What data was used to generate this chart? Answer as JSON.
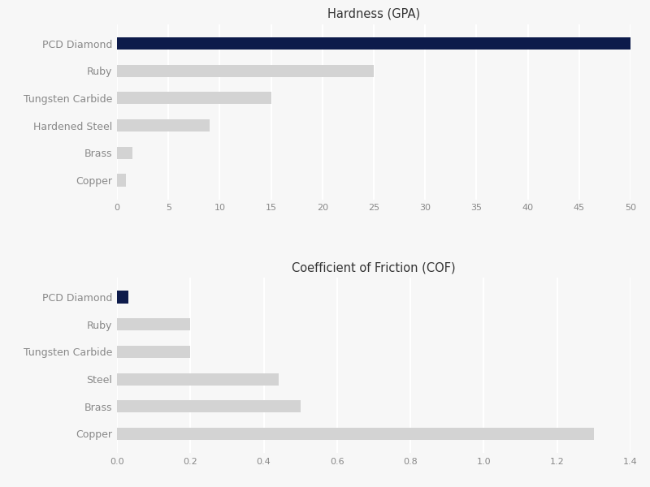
{
  "hardness": {
    "title": "Hardness (GPA)",
    "categories": [
      "PCD Diamond",
      "Ruby",
      "Tungsten Carbide",
      "Hardened Steel",
      "Brass",
      "Copper"
    ],
    "values": [
      50,
      25,
      15,
      9,
      1.5,
      0.9
    ],
    "colors": [
      "#0d1b4b",
      "#d3d3d3",
      "#d3d3d3",
      "#d3d3d3",
      "#d3d3d3",
      "#d3d3d3"
    ],
    "xlim": [
      0,
      50
    ],
    "xticks": [
      0,
      5,
      10,
      15,
      20,
      25,
      30,
      35,
      40,
      45,
      50
    ]
  },
  "cof": {
    "title": "Coefficient of Friction (COF)",
    "categories": [
      "PCD Diamond",
      "Ruby",
      "Tungsten Carbide",
      "Steel",
      "Brass",
      "Copper"
    ],
    "values": [
      0.03,
      0.2,
      0.2,
      0.44,
      0.5,
      1.3
    ],
    "colors": [
      "#0d1b4b",
      "#d3d3d3",
      "#d3d3d3",
      "#d3d3d3",
      "#d3d3d3",
      "#d3d3d3"
    ],
    "xlim": [
      0,
      1.4
    ],
    "xticks": [
      0,
      0.2,
      0.4,
      0.6,
      0.8,
      1.0,
      1.2,
      1.4
    ]
  },
  "background_color": "#f7f7f7",
  "bar_height": 0.45,
  "label_fontsize": 9,
  "title_fontsize": 10.5,
  "tick_fontsize": 8,
  "label_color": "#888888",
  "title_color": "#333333",
  "grid_color": "#ffffff",
  "grid_linewidth": 1.5
}
